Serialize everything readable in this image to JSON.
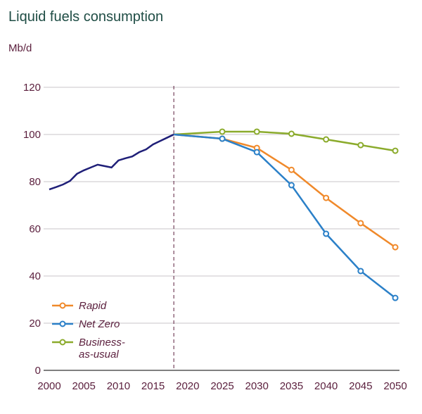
{
  "chart_data": {
    "type": "line",
    "title": "Liquid fuels consumption",
    "ylabel": "Mb/d",
    "xlabel": "",
    "xlim": [
      2000,
      2050
    ],
    "ylim": [
      0,
      120
    ],
    "xticks": [
      "2000",
      "2005",
      "2010",
      "2015",
      "2020",
      "2025",
      "2030",
      "2035",
      "2040",
      "2045",
      "2050"
    ],
    "yticks": [
      "0",
      "20",
      "40",
      "60",
      "80",
      "100",
      "120"
    ],
    "grid": "horizontal",
    "legend_position": "bottom-left",
    "divider_year": 2018,
    "historical": {
      "color": "#1f1f78",
      "x": [
        2000,
        2001,
        2002,
        2003,
        2004,
        2005,
        2006,
        2007,
        2008,
        2009,
        2010,
        2011,
        2012,
        2013,
        2014,
        2015,
        2016,
        2017,
        2018
      ],
      "y": [
        76.7,
        77.7,
        78.8,
        80.3,
        83.3,
        84.8,
        86,
        87.2,
        86.6,
        86,
        89,
        89.9,
        90.7,
        92.5,
        93.7,
        95.8,
        97.2,
        98.6,
        100
      ]
    },
    "series": [
      {
        "name": "Rapid",
        "color": "#f0892a",
        "x": [
          2018,
          2025,
          2030,
          2035,
          2040,
          2045,
          2050
        ],
        "y": [
          100,
          98.2,
          94.3,
          85,
          73.1,
          62.4,
          52.2
        ]
      },
      {
        "name": "Net Zero",
        "color": "#2b80c8",
        "x": [
          2018,
          2025,
          2030,
          2035,
          2040,
          2045,
          2050
        ],
        "y": [
          100,
          98.2,
          92.5,
          78.5,
          57.9,
          42.1,
          30.7
        ]
      },
      {
        "name": "Business-\nas-usual",
        "color": "#8bab2c",
        "x": [
          2018,
          2025,
          2030,
          2035,
          2040,
          2045,
          2050
        ],
        "y": [
          100,
          101.2,
          101.2,
          100.3,
          97.9,
          95.5,
          93.1
        ]
      }
    ]
  }
}
